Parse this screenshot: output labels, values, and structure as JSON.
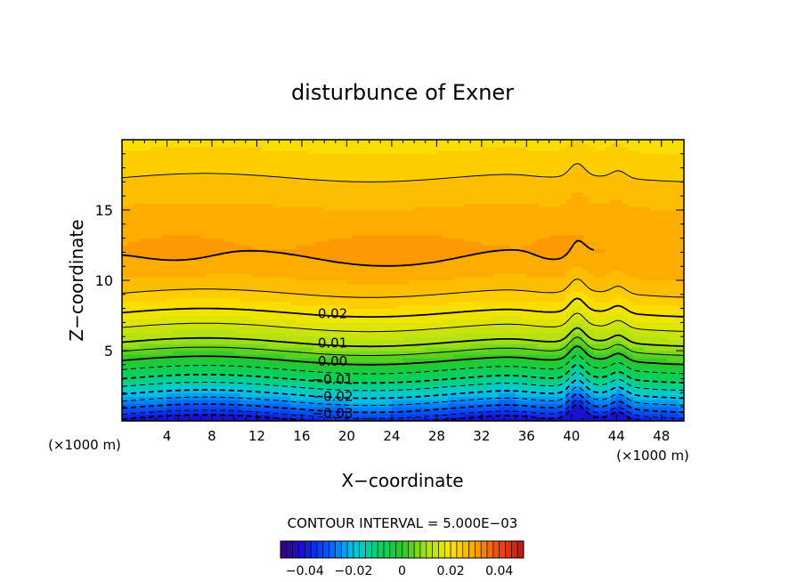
{
  "chart_data": {
    "type": "heatmap",
    "title": "disturbunce of Exner",
    "xlabel": "X−coordinate",
    "ylabel": "Z−coordinate",
    "x_unit": "(×1000 m)",
    "y_unit": "(×1000 m)",
    "xlim": [
      0,
      50
    ],
    "ylim": [
      0,
      20
    ],
    "x_ticks": [
      "4",
      "8",
      "12",
      "16",
      "20",
      "24",
      "28",
      "32",
      "36",
      "40",
      "44",
      "48"
    ],
    "y_ticks": [
      "5",
      "10",
      "15"
    ],
    "contour_interval_text": "CONTOUR INTERVAL = 5.000E−03",
    "contour_labels": [
      {
        "text": "0.02",
        "x": 17.0,
        "z": 7.7
      },
      {
        "text": "0.01",
        "x": 17.0,
        "z": 5.6
      },
      {
        "text": "0.00",
        "x": 17.0,
        "z": 4.3
      },
      {
        "text": "−0.01",
        "x": 17.0,
        "z": 3.0
      },
      {
        "text": "−0.02",
        "x": 17.0,
        "z": 1.8
      },
      {
        "text": "−0.03",
        "x": 17.0,
        "z": 0.6
      }
    ],
    "colorbar": {
      "range": [
        -0.05,
        0.05
      ],
      "ticks": [
        "−0.04",
        "−0.02",
        "0",
        "0.02",
        "0.04"
      ]
    },
    "grid": false
  }
}
